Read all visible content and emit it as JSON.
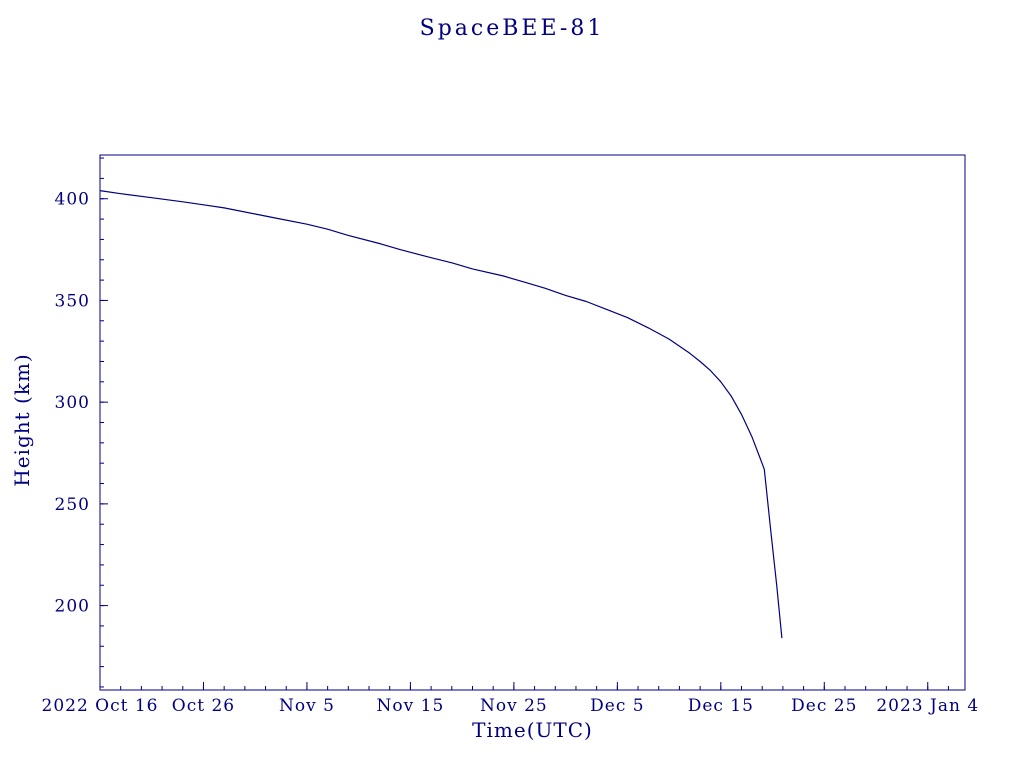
{
  "chart_data": {
    "type": "line",
    "title": "SpaceBEE-81",
    "xlabel": "Time(UTC)",
    "ylabel": "Height (km)",
    "color": "#000080",
    "grid": false,
    "legend": "none",
    "xlim": [
      0,
      83.6
    ],
    "ylim": [
      158.5,
      421.5
    ],
    "x_tick_unit": "days since 2022 Oct 16",
    "x_ticks": [
      {
        "day": 0,
        "label": "2022 Oct 16"
      },
      {
        "day": 10,
        "label": "Oct 26"
      },
      {
        "day": 20,
        "label": "Nov 5"
      },
      {
        "day": 30,
        "label": "Nov 15"
      },
      {
        "day": 40,
        "label": "Nov 25"
      },
      {
        "day": 50,
        "label": "Dec 5"
      },
      {
        "day": 60,
        "label": "Dec 15"
      },
      {
        "day": 70,
        "label": "Dec 25"
      },
      {
        "day": 80,
        "label": "2023 Jan 4"
      }
    ],
    "x_minor_step": 2,
    "y_ticks": [
      200,
      250,
      300,
      350,
      400
    ],
    "y_minor_step": 10,
    "series": [
      {
        "name": "orbital-height",
        "points": [
          [
            0,
            404
          ],
          [
            2,
            402.5
          ],
          [
            5,
            400.5
          ],
          [
            8,
            398.5
          ],
          [
            10,
            397
          ],
          [
            12,
            395.5
          ],
          [
            15,
            392.5
          ],
          [
            17,
            390.5
          ],
          [
            20,
            387.5
          ],
          [
            22,
            385
          ],
          [
            24,
            382
          ],
          [
            27,
            378
          ],
          [
            29,
            375
          ],
          [
            32,
            371
          ],
          [
            34,
            368.5
          ],
          [
            36,
            365.5
          ],
          [
            39,
            362
          ],
          [
            41,
            359
          ],
          [
            43,
            356
          ],
          [
            45,
            352.5
          ],
          [
            47,
            349.5
          ],
          [
            49,
            345.5
          ],
          [
            51,
            341.5
          ],
          [
            53,
            336.5
          ],
          [
            55,
            331
          ],
          [
            57,
            324
          ],
          [
            58,
            320
          ],
          [
            59,
            315.5
          ],
          [
            60,
            310
          ],
          [
            61,
            303
          ],
          [
            62,
            294
          ],
          [
            63,
            283
          ],
          [
            63.8,
            272.5
          ],
          [
            64.2,
            267
          ],
          [
            64.8,
            238
          ],
          [
            65.4,
            210
          ],
          [
            65.9,
            184
          ]
        ]
      }
    ]
  }
}
